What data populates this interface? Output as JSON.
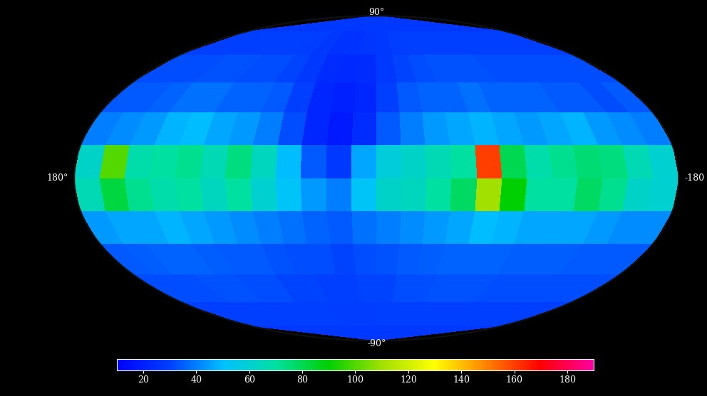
{
  "chart_data": {
    "type": "heatmap",
    "lon_edges": [
      180,
      165,
      150,
      135,
      120,
      105,
      90,
      75,
      60,
      45,
      30,
      15,
      0,
      -15,
      -30,
      -45,
      -60,
      -75,
      -90,
      -105,
      -120,
      -135,
      -150,
      -165,
      -180
    ],
    "lat_edges": [
      90,
      75,
      60,
      45,
      30,
      15,
      0,
      -15,
      -30,
      -45,
      -60,
      -75,
      -90
    ],
    "cells": [
      [
        28,
        28,
        28,
        28,
        28,
        28,
        28,
        28,
        28,
        28,
        28,
        28,
        28,
        28,
        28,
        28,
        28,
        28,
        28,
        28,
        28,
        28,
        28,
        28
      ],
      [
        30,
        30,
        30,
        30,
        30,
        30,
        30,
        29,
        28,
        26,
        26,
        27,
        28,
        29,
        30,
        30,
        30,
        30,
        30,
        30,
        30,
        30,
        30,
        30
      ],
      [
        32,
        32,
        32,
        33,
        33,
        32,
        32,
        31,
        28,
        24,
        23,
        24,
        28,
        31,
        32,
        33,
        33,
        33,
        32,
        32,
        32,
        32,
        32,
        32
      ],
      [
        34,
        34,
        36,
        38,
        38,
        36,
        36,
        34,
        30,
        22,
        20,
        22,
        30,
        34,
        36,
        36,
        38,
        36,
        36,
        36,
        34,
        34,
        32,
        34
      ],
      [
        40,
        42,
        44,
        48,
        50,
        46,
        44,
        40,
        32,
        22,
        18,
        24,
        34,
        40,
        44,
        46,
        48,
        46,
        44,
        46,
        48,
        44,
        42,
        40
      ],
      [
        62,
        100,
        68,
        70,
        72,
        66,
        74,
        64,
        50,
        34,
        28,
        46,
        58,
        62,
        66,
        70,
        160,
        80,
        68,
        72,
        76,
        74,
        66,
        60
      ],
      [
        66,
        82,
        72,
        68,
        70,
        64,
        70,
        60,
        52,
        44,
        40,
        52,
        62,
        64,
        70,
        78,
        110,
        90,
        70,
        70,
        78,
        72,
        62,
        60
      ],
      [
        44,
        46,
        46,
        48,
        46,
        44,
        42,
        40,
        38,
        36,
        34,
        38,
        40,
        42,
        44,
        46,
        50,
        48,
        46,
        46,
        46,
        44,
        42,
        42
      ],
      [
        34,
        35,
        36,
        36,
        35,
        34,
        34,
        33,
        32,
        32,
        31,
        32,
        33,
        34,
        35,
        36,
        36,
        36,
        35,
        35,
        35,
        34,
        34,
        34
      ],
      [
        32,
        32,
        32,
        33,
        33,
        32,
        32,
        31,
        31,
        30,
        30,
        31,
        31,
        32,
        32,
        33,
        33,
        33,
        32,
        32,
        32,
        32,
        32,
        32
      ],
      [
        30,
        30,
        30,
        30,
        30,
        30,
        30,
        30,
        30,
        29,
        29,
        29,
        30,
        30,
        30,
        30,
        30,
        30,
        30,
        30,
        30,
        30,
        30,
        30
      ],
      [
        28,
        28,
        28,
        28,
        28,
        28,
        28,
        28,
        28,
        28,
        28,
        28,
        28,
        28,
        28,
        28,
        28,
        28,
        28,
        28,
        28,
        28,
        28,
        28
      ]
    ],
    "color_range": [
      10,
      190
    ],
    "color_ticks": [
      20,
      40,
      60,
      80,
      100,
      120,
      140,
      160,
      180
    ],
    "xticks": [
      {
        "value": 180,
        "label": "180°"
      },
      {
        "value": -180,
        "label": "-180"
      }
    ],
    "yticks": [
      {
        "value": 90,
        "label": "90°"
      },
      {
        "value": -90,
        "label": "-90°"
      }
    ]
  }
}
